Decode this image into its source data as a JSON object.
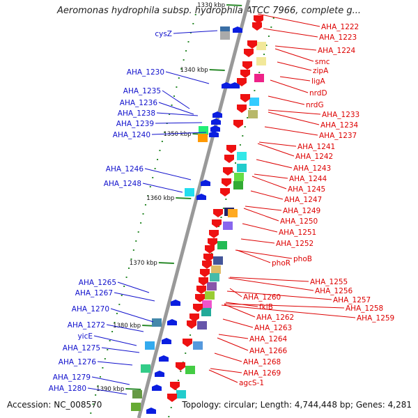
{
  "title": "Aeromonas hydrophila subsp. hydrophila ATCC 7966, complete g...",
  "accession": "Accession: NC_008570",
  "topology": "Topology: circular; Length: 4,744,448 bp; Genes: 4,281",
  "colors": {
    "backbone": "#999999",
    "forward_strand_label": "#1010cc",
    "reverse_strand_label": "#dd0000",
    "forward_gene": "#0a1ee0",
    "reverse_gene": "#ee1111",
    "tick": "#2a8a2a"
  },
  "scale_labels": [
    "1330 kbp",
    "1340 kbp",
    "1350 kbp",
    "1360 kbp",
    "1370 kbp",
    "1380 kbp",
    "1390 kbp"
  ],
  "left_labels": [
    "cysZ",
    "AHA_1230",
    "AHA_1235",
    "AHA_1236",
    "AHA_1238",
    "AHA_1239",
    "AHA_1240",
    "AHA_1246",
    "AHA_1248",
    "AHA_1265",
    "AHA_1267",
    "AHA_1270",
    "AHA_1272",
    "yicE",
    "AHA_1275",
    "AHA_1276",
    "AHA_1279",
    "AHA_1280"
  ],
  "right_labels": [
    "AHA_1222",
    "AHA_1223",
    "AHA_1224",
    "smc",
    "zipA",
    "ligA",
    "nrdD",
    "nrdG",
    "AHA_1233",
    "AHA_1234",
    "AHA_1237",
    "AHA_1241",
    "AHA_1242",
    "AHA_1243",
    "AHA_1244",
    "AHA_1245",
    "AHA_1247",
    "AHA_1249",
    "AHA_1250",
    "AHA_1251",
    "AHA_1252",
    "phoR",
    "phoB",
    "AHA_1255",
    "AHA_1256",
    "AHA_1257",
    "AHA_1258",
    "AHA_1259",
    "AHA_1260",
    "fklB",
    "AHA_1262",
    "AHA_1263",
    "AHA_1264",
    "AHA_1266",
    "AHA_1268",
    "AHA_1269",
    "agcS-1"
  ]
}
